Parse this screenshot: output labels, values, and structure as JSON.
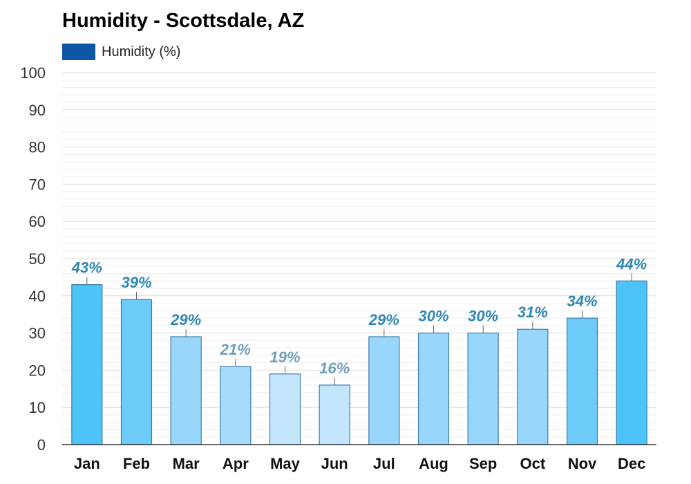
{
  "chart_data": {
    "type": "bar",
    "title": "Humidity - Scottsdale, AZ",
    "xlabel": "",
    "ylabel": "",
    "ylim": [
      0,
      100
    ],
    "yticks": [
      0,
      10,
      20,
      30,
      40,
      50,
      60,
      70,
      80,
      90,
      100
    ],
    "grid": true,
    "legend": {
      "placement": "top-left",
      "entries": [
        "Humidity (%)"
      ]
    },
    "categories": [
      "Jan",
      "Feb",
      "Mar",
      "Apr",
      "May",
      "Jun",
      "Jul",
      "Aug",
      "Sep",
      "Oct",
      "Nov",
      "Dec"
    ],
    "series": [
      {
        "name": "Humidity (%)",
        "values": [
          43,
          39,
          29,
          21,
          19,
          16,
          29,
          30,
          30,
          31,
          34,
          44
        ],
        "data_labels": [
          "43%",
          "39%",
          "29%",
          "21%",
          "19%",
          "16%",
          "29%",
          "30%",
          "30%",
          "31%",
          "34%",
          "44%"
        ]
      }
    ],
    "colors": {
      "legend_swatch": "#0b57a4",
      "axis": "#333333",
      "grid": "#dcdcdc"
    }
  }
}
